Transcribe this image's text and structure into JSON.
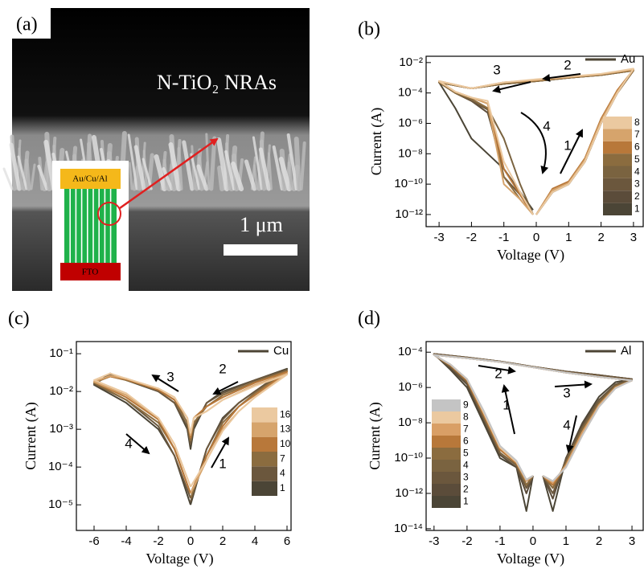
{
  "image_panel": {
    "label": "(a)",
    "title": "N-TiO₂ NRAs",
    "scale_bar": "1 μm",
    "top_electrode": "Au/Cu/Al",
    "bottom_electrode": "FTO"
  },
  "chart_data": [
    {
      "type": "line",
      "panel_label": "(b)",
      "material": "Au",
      "material_color": "#4d4535",
      "xlabel": "Voltage (V)",
      "ylabel": "Current (A)",
      "log_y": true,
      "xlim": [
        -3.4,
        3.3
      ],
      "ylim": [
        1.6e-13,
        0.026
      ],
      "xticks": [
        -3,
        -2,
        -1,
        0,
        1,
        2,
        3
      ],
      "yticks": [
        {
          "value": 1e-12,
          "label": "10⁻¹²"
        },
        {
          "value": 1e-10,
          "label": "10⁻¹⁰"
        },
        {
          "value": 1e-08,
          "label": "10⁻⁸"
        },
        {
          "value": 1e-06,
          "label": "10⁻⁶"
        },
        {
          "value": 0.0001,
          "label": "10⁻⁴"
        },
        {
          "value": 0.01,
          "label": "10⁻²"
        }
      ],
      "x": [
        0,
        0.5,
        1,
        1.5,
        2,
        2.5,
        3,
        2,
        1,
        0,
        -1,
        -2,
        -3,
        -2.5,
        -2,
        -1.5,
        -1,
        -0.5,
        -0.1
      ],
      "series": [
        {
          "name": "1",
          "color": "#4b4536",
          "values": [
            1e-12,
            3e-11,
            1e-10,
            3e-09,
            1e-06,
            0.0001,
            0.003,
            0.0015,
            0.001,
            0.0006,
            0.0004,
            0.0002,
            0.0005,
            1e-05,
            1e-07,
            1e-08,
            1e-09,
            3e-11,
            2e-12
          ]
        },
        {
          "name": "2",
          "color": "#5b4c3a",
          "values": [
            1e-12,
            3e-11,
            1e-10,
            3e-09,
            1e-06,
            0.0001,
            0.003,
            0.0015,
            0.001,
            0.0006,
            0.0004,
            0.0002,
            0.0005,
            0.0001,
            3e-05,
            5e-06,
            1e-09,
            3e-11,
            1e-12
          ]
        },
        {
          "name": "3",
          "color": "#6b573d",
          "values": [
            1e-12,
            4e-11,
            1e-10,
            4e-09,
            1.5e-06,
            0.0001,
            0.003,
            0.0016,
            0.001,
            0.0006,
            0.0004,
            0.0002,
            0.0005,
            0.0001,
            3e-05,
            8e-06,
            3e-10,
            2e-11,
            1e-12
          ]
        },
        {
          "name": "4",
          "color": "#7a6340",
          "values": [
            1e-12,
            4e-11,
            1.2e-10,
            4e-09,
            1.5e-06,
            0.00012,
            0.003,
            0.0016,
            0.001,
            0.0007,
            0.0004,
            0.0002,
            0.0005,
            0.0001,
            4e-05,
            1e-05,
            1e-07,
            1e-10,
            1e-12
          ]
        },
        {
          "name": "5",
          "color": "#8b6c3f",
          "values": [
            1e-12,
            3e-11,
            1e-10,
            3e-09,
            1e-06,
            0.0001,
            0.003,
            0.0015,
            0.001,
            0.0006,
            0.0004,
            0.0002,
            0.0005,
            0.0001,
            4e-05,
            1e-05,
            3e-10,
            1e-11,
            1e-12
          ]
        },
        {
          "name": "6",
          "color": "#b8783a",
          "values": [
            1e-12,
            5e-11,
            1.5e-10,
            5e-09,
            2e-06,
            0.00015,
            0.0035,
            0.0017,
            0.0011,
            0.0007,
            0.0005,
            0.0002,
            0.0006,
            0.00012,
            5e-05,
            2e-05,
            1e-09,
            2e-11,
            1e-12
          ]
        },
        {
          "name": "7",
          "color": "#d6a46c",
          "values": [
            1e-12,
            4e-11,
            1.2e-10,
            4e-09,
            1.5e-06,
            0.00012,
            0.0035,
            0.0017,
            0.0011,
            0.0007,
            0.0005,
            0.0002,
            0.0006,
            0.00012,
            5e-05,
            2e-05,
            1e-10,
            1e-11,
            1e-12
          ]
        },
        {
          "name": "8",
          "color": "#ebc9a0",
          "values": [
            1e-12,
            3e-11,
            1e-10,
            3e-09,
            1e-06,
            0.0001,
            0.004,
            0.0018,
            0.0012,
            0.0008,
            0.0005,
            0.0002,
            0.0006,
            0.00012,
            5e-05,
            3e-05,
            3e-09,
            3e-11,
            1e-12
          ]
        }
      ],
      "annotations": [
        "1",
        "2",
        "3",
        "4"
      ]
    },
    {
      "type": "line",
      "panel_label": "(c)",
      "material": "Cu",
      "material_color": "#4d4535",
      "xlabel": "Voltage (V)",
      "ylabel": "Current (A)",
      "log_y": true,
      "xlim": [
        -7.1,
        6.25
      ],
      "ylim": [
        2.1e-06,
        0.21
      ],
      "xticks": [
        -6,
        -4,
        -2,
        0,
        2,
        4,
        6
      ],
      "yticks": [
        {
          "value": 1e-05,
          "label": "10⁻⁵"
        },
        {
          "value": 0.0001,
          "label": "10⁻⁴"
        },
        {
          "value": 0.001,
          "label": "10⁻³"
        },
        {
          "value": 0.01,
          "label": "10⁻²"
        },
        {
          "value": 0.1,
          "label": "10⁻¹"
        }
      ],
      "x": [
        0,
        1,
        2,
        3,
        4,
        6,
        4,
        2,
        1,
        0.2,
        0,
        -0.2,
        -1,
        -2,
        -4,
        -5,
        -6,
        -4,
        -2,
        -1,
        0
      ],
      "series": [
        {
          "name": "1",
          "color": "#4b4536",
          "values": [
            1e-05,
            0.0003,
            0.002,
            0.005,
            0.01,
            0.04,
            0.02,
            0.01,
            0.005,
            0.001,
            0.0003,
            0.001,
            0.005,
            0.01,
            0.02,
            0.03,
            0.015,
            0.005,
            0.001,
            0.0002,
            1e-05
          ]
        },
        {
          "name": "4",
          "color": "#6b573d",
          "values": [
            1.2e-05,
            0.0003,
            0.0018,
            0.005,
            0.01,
            0.038,
            0.02,
            0.009,
            0.005,
            0.0012,
            0.0004,
            0.0012,
            0.005,
            0.01,
            0.022,
            0.028,
            0.016,
            0.006,
            0.0012,
            0.0002,
            1.5e-05
          ]
        },
        {
          "name": "7",
          "color": "#8b6c3f",
          "values": [
            1.5e-05,
            0.0002,
            0.0015,
            0.004,
            0.009,
            0.035,
            0.018,
            0.008,
            0.004,
            0.0015,
            0.0005,
            0.0015,
            0.006,
            0.011,
            0.02,
            0.025,
            0.017,
            0.006,
            0.0015,
            0.0003,
            2e-05
          ]
        },
        {
          "name": "10",
          "color": "#b8783a",
          "values": [
            2e-05,
            0.0002,
            0.0012,
            0.004,
            0.008,
            0.033,
            0.017,
            0.007,
            0.004,
            0.002,
            0.0006,
            0.002,
            0.006,
            0.011,
            0.021,
            0.025,
            0.018,
            0.007,
            0.0018,
            0.0003,
            2e-05
          ]
        },
        {
          "name": "13",
          "color": "#d6a46c",
          "values": [
            2e-05,
            0.00015,
            0.001,
            0.003,
            0.007,
            0.03,
            0.015,
            0.006,
            0.003,
            0.002,
            0.0007,
            0.002,
            0.007,
            0.012,
            0.022,
            0.026,
            0.018,
            0.008,
            0.002,
            0.0004,
            3e-05
          ]
        },
        {
          "name": "16",
          "color": "#ebc9a0",
          "values": [
            3e-05,
            0.00015,
            0.0009,
            0.003,
            0.007,
            0.028,
            0.014,
            0.006,
            0.003,
            0.002,
            0.0008,
            0.002,
            0.007,
            0.012,
            0.022,
            0.03,
            0.02,
            0.009,
            0.002,
            0.0004,
            3e-05
          ]
        }
      ],
      "annotations": [
        "1",
        "2",
        "3",
        "4"
      ]
    },
    {
      "type": "line",
      "panel_label": "(d)",
      "material": "Al",
      "material_color": "#4d4535",
      "xlabel": "Voltage (V)",
      "ylabel": "Current (A)",
      "log_y": true,
      "xlim": [
        -3.24,
        3.34
      ],
      "ylim": [
        8e-15,
        0.0004
      ],
      "xticks": [
        -3,
        -2,
        -1,
        0,
        1,
        2,
        3
      ],
      "yticks": [
        {
          "value": 1e-14,
          "label": "10⁻¹⁴"
        },
        {
          "value": 1e-12,
          "label": "10⁻¹²"
        },
        {
          "value": 1e-10,
          "label": "10⁻¹⁰"
        },
        {
          "value": 1e-08,
          "label": "10⁻⁸"
        },
        {
          "value": 1e-06,
          "label": "10⁻⁶"
        },
        {
          "value": 0.0001,
          "label": "10⁻⁴"
        }
      ],
      "x": [
        0,
        -0.2,
        -0.5,
        -1,
        -1.5,
        -2,
        -2.5,
        -3,
        -2,
        -1,
        0,
        1,
        2,
        3,
        2.5,
        2,
        1.5,
        1,
        0.6,
        0.3
      ],
      "series": [
        {
          "name": "1",
          "color": "#4b4536",
          "values": [
            1e-11,
            1e-13,
            3e-11,
            1e-10,
            1e-08,
            1e-06,
            1e-05,
            8e-05,
            5e-05,
            3e-05,
            1.5e-05,
            8e-06,
            5e-06,
            3e-06,
            2e-06,
            3e-07,
            1e-08,
            1e-10,
            1e-13,
            1e-11
          ]
        },
        {
          "name": "2",
          "color": "#5b4c3a",
          "values": [
            1e-11,
            1e-12,
            3e-11,
            1.5e-10,
            1.5e-08,
            1.5e-06,
            1.2e-05,
            8e-05,
            5e-05,
            3e-05,
            1.5e-05,
            8e-06,
            5e-06,
            3e-06,
            1.5e-06,
            2e-07,
            8e-09,
            1e-10,
            5e-13,
            1e-11
          ]
        },
        {
          "name": "3",
          "color": "#6b573d",
          "values": [
            1e-11,
            2e-12,
            4e-11,
            2e-10,
            2e-08,
            2e-06,
            1.5e-05,
            8e-05,
            5e-05,
            3e-05,
            1.5e-05,
            8e-06,
            5e-06,
            3e-06,
            1.5e-06,
            2e-07,
            6e-09,
            8e-11,
            1e-12,
            1e-11
          ]
        },
        {
          "name": "4",
          "color": "#7a6340",
          "values": [
            1e-11,
            3e-12,
            4e-11,
            2e-10,
            2e-08,
            2e-06,
            1.5e-05,
            7e-05,
            4.5e-05,
            2.8e-05,
            1.4e-05,
            7e-06,
            4e-06,
            2.5e-06,
            1.2e-06,
            1.5e-07,
            5e-09,
            6e-11,
            2e-12,
            1e-11
          ]
        },
        {
          "name": "5",
          "color": "#8b6c3f",
          "values": [
            1e-11,
            3e-12,
            5e-11,
            3e-10,
            3e-08,
            2.5e-06,
            1.8e-05,
            7e-05,
            4.5e-05,
            2.8e-05,
            1.4e-05,
            7e-06,
            4e-06,
            2.5e-06,
            1.2e-06,
            1.2e-07,
            4e-09,
            5e-11,
            2e-12,
            1e-11
          ]
        },
        {
          "name": "6",
          "color": "#b8783a",
          "values": [
            1e-11,
            5e-12,
            5e-11,
            3e-10,
            3e-08,
            2.5e-06,
            1.8e-05,
            7e-05,
            4.5e-05,
            2.8e-05,
            1.4e-05,
            7e-06,
            4e-06,
            2.5e-06,
            1e-06,
            1e-07,
            3e-09,
            4e-11,
            3e-12,
            1e-11
          ]
        },
        {
          "name": "7",
          "color": "#d99f66",
          "values": [
            1e-11,
            5e-12,
            6e-11,
            4e-10,
            4e-08,
            3e-06,
            2e-05,
            7e-05,
            4.5e-05,
            2.8e-05,
            1.4e-05,
            7e-06,
            4e-06,
            2.5e-06,
            1e-06,
            1e-07,
            3e-09,
            4e-11,
            4e-12,
            1e-11
          ]
        },
        {
          "name": "8",
          "color": "#ebc9a0",
          "values": [
            1e-11,
            6e-12,
            6e-11,
            4e-10,
            4e-08,
            3e-06,
            2e-05,
            7e-05,
            4.5e-05,
            2.8e-05,
            1.4e-05,
            7e-06,
            4e-06,
            2.5e-06,
            9e-07,
            8e-08,
            2e-09,
            3e-11,
            5e-12,
            1e-11
          ]
        },
        {
          "name": "9",
          "color": "#c4c4c4",
          "values": [
            1e-11,
            6e-12,
            7e-11,
            5e-10,
            5e-08,
            3e-06,
            2e-05,
            7e-05,
            4.5e-05,
            2.8e-05,
            1.4e-05,
            7e-06,
            4e-06,
            2.5e-06,
            9e-07,
            8e-08,
            2e-09,
            3e-11,
            5e-12,
            1e-11
          ]
        }
      ],
      "annotations": [
        "1",
        "2",
        "3",
        "4"
      ]
    }
  ]
}
